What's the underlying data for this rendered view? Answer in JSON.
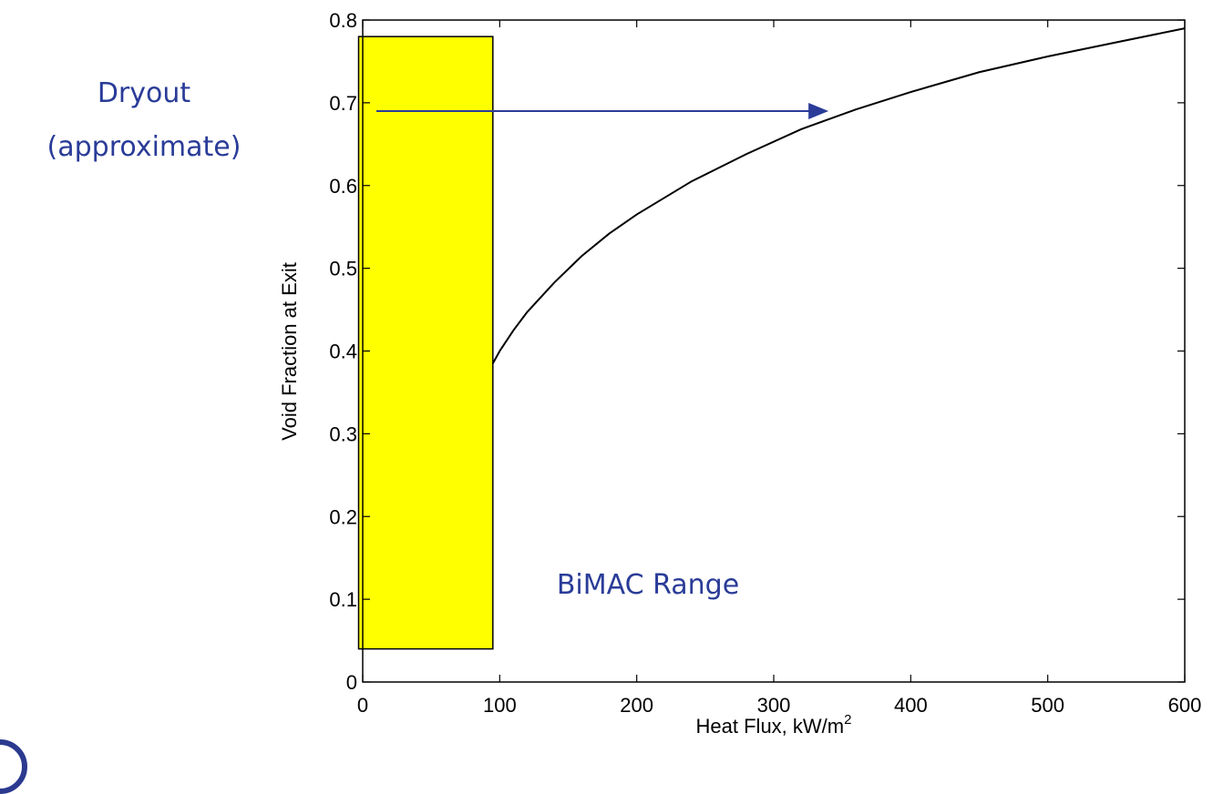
{
  "colors": {
    "annotation": "#2a3c98",
    "box_fill": "#ffff00",
    "curve": "#000000"
  },
  "annotations": {
    "dryout_line1": "Dryout",
    "dryout_line2": "(approximate)",
    "bimac_range": "BiMAC Range"
  },
  "chart_data": {
    "type": "line",
    "title": "",
    "xlabel": "Heat Flux, kW/m",
    "xlabel_superscript": "2",
    "ylabel": "Void Fraction at Exit",
    "xlim": [
      0,
      600
    ],
    "ylim": [
      0,
      0.8
    ],
    "x_ticks": [
      0,
      100,
      200,
      300,
      400,
      500,
      600
    ],
    "x_tick_labels": [
      "0",
      "100",
      "200",
      "300",
      "400",
      "500",
      "600"
    ],
    "y_ticks": [
      0,
      0.1,
      0.2,
      0.3,
      0.4,
      0.5,
      0.6,
      0.7,
      0.8
    ],
    "y_tick_labels": [
      "0",
      "0.1",
      "0.2",
      "0.3",
      "0.4",
      "0.5",
      "0.6",
      "0.7",
      "0.8"
    ],
    "grid": false,
    "series": [
      {
        "x": [
          95,
          100,
          110,
          120,
          140,
          160,
          180,
          200,
          240,
          280,
          320,
          360,
          400,
          450,
          500,
          550,
          600
        ],
        "y": [
          0.385,
          0.4,
          0.425,
          0.447,
          0.483,
          0.515,
          0.542,
          0.565,
          0.605,
          0.638,
          0.668,
          0.692,
          0.713,
          0.737,
          0.756,
          0.773,
          0.79
        ]
      }
    ],
    "shaded_region": {
      "x": [
        -3,
        95
      ],
      "y": [
        0.04,
        0.78
      ],
      "color": "#ffff00"
    },
    "arrow": {
      "from": [
        10,
        0.69
      ],
      "to": [
        340,
        0.69
      ],
      "color": "#2a3c98"
    }
  }
}
